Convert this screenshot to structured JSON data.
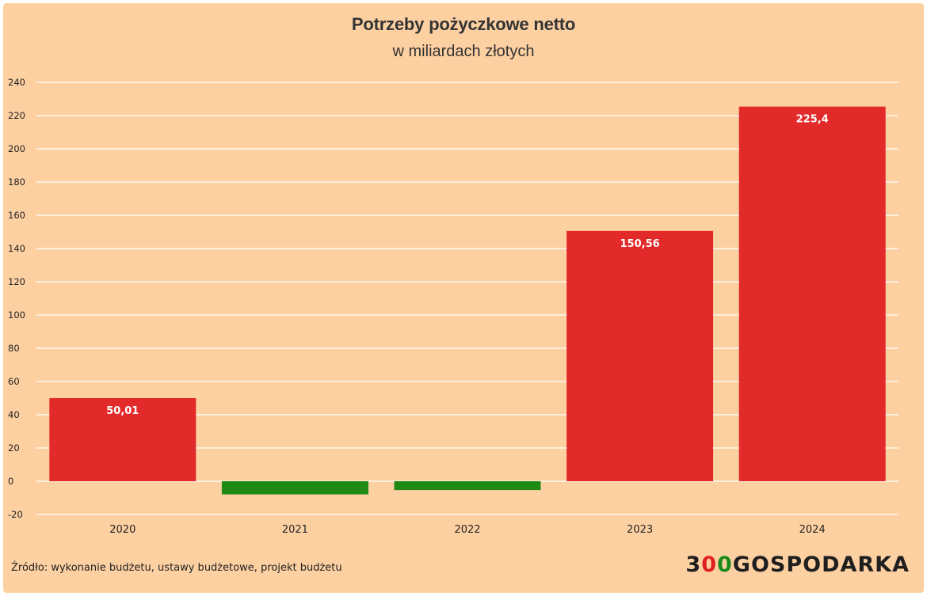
{
  "chart_data": {
    "type": "bar",
    "title": "Potrzeby pożyczkowe netto",
    "subtitle": "w miliardach złotych",
    "categories": [
      "2020",
      "2021",
      "2022",
      "2023",
      "2024"
    ],
    "values": [
      50.01,
      -7.9,
      -5.3,
      150.56,
      225.4
    ],
    "data_labels": [
      "50,01",
      "",
      "",
      "150,56",
      "225,4"
    ],
    "xlabel": "",
    "ylabel": "",
    "ylim": [
      -20,
      240
    ],
    "yticks": [
      -20,
      0,
      20,
      40,
      60,
      80,
      100,
      120,
      140,
      160,
      180,
      200,
      220,
      240
    ],
    "grid": true,
    "colors": {
      "positive": "#e32a2a",
      "negative": "#1f8a14",
      "gridline": "#ffffff"
    }
  },
  "footer": {
    "source": "Źródło: wykonanie budżetu, ustawy budżetowe, projekt budżetu"
  },
  "logo": {
    "part1": "3",
    "part2": "0",
    "part3": "0",
    "part4": "GOSPODARKA"
  }
}
